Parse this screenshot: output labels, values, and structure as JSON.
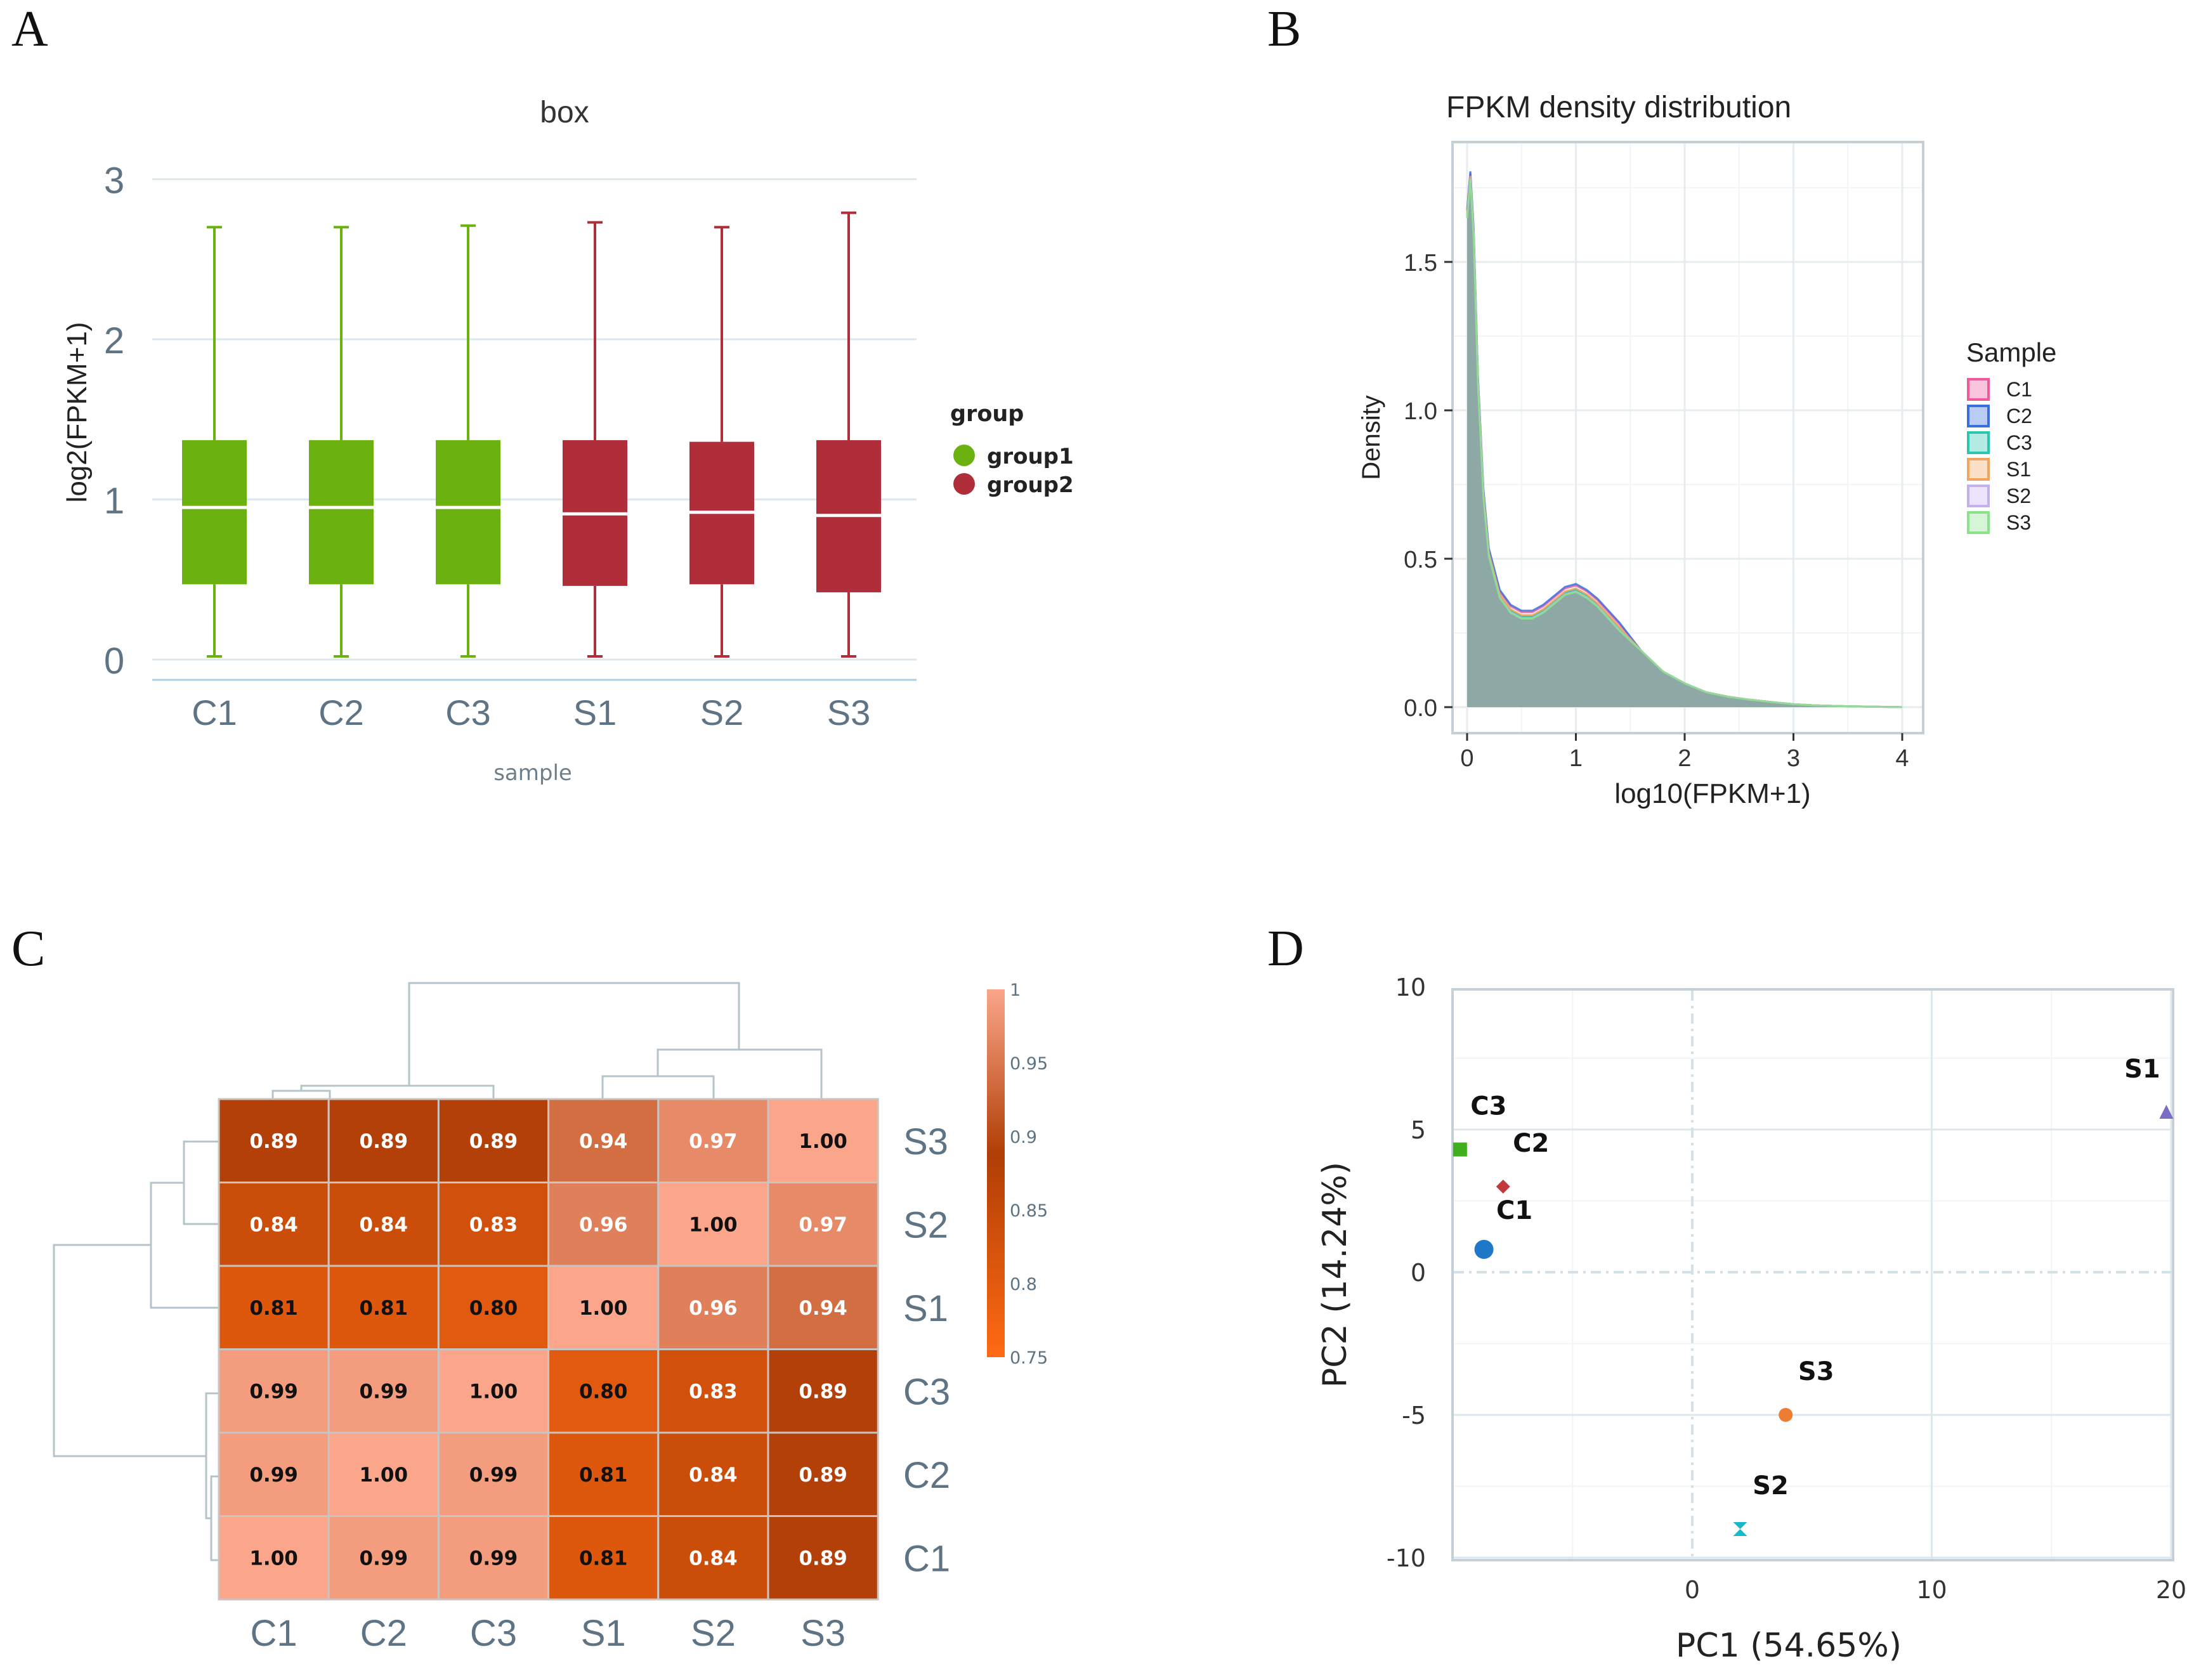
{
  "colors": {
    "group1": "#6bb10f",
    "group2": "#b02e3a",
    "heat_low": "#ff6a14",
    "heat_mid": "#b03e05",
    "heat_high": "#fba58a",
    "grid": "#dde8ee",
    "axis_text": "#5e7383"
  },
  "chart_data": [
    {
      "panel": "A",
      "type": "box",
      "title": "box",
      "xlabel": "sample",
      "ylabel": "log2(FPKM+1)",
      "ylim": [
        0,
        3
      ],
      "yticks": [
        "0",
        "1",
        "2",
        "3"
      ],
      "categories": [
        "C1",
        "C2",
        "C3",
        "S1",
        "S2",
        "S3"
      ],
      "groups": [
        "group1",
        "group1",
        "group1",
        "group2",
        "group2",
        "group2"
      ],
      "boxes": [
        {
          "min": 0.02,
          "q1": 0.47,
          "median": 0.95,
          "q3": 1.37,
          "max": 2.7
        },
        {
          "min": 0.02,
          "q1": 0.47,
          "median": 0.95,
          "q3": 1.37,
          "max": 2.7
        },
        {
          "min": 0.02,
          "q1": 0.47,
          "median": 0.95,
          "q3": 1.37,
          "max": 2.71
        },
        {
          "min": 0.02,
          "q1": 0.46,
          "median": 0.91,
          "q3": 1.37,
          "max": 2.73
        },
        {
          "min": 0.02,
          "q1": 0.47,
          "median": 0.92,
          "q3": 1.36,
          "max": 2.7
        },
        {
          "min": 0.02,
          "q1": 0.42,
          "median": 0.9,
          "q3": 1.37,
          "max": 2.79
        }
      ],
      "legend": {
        "title": "group",
        "entries": [
          "group1",
          "group2"
        ]
      }
    },
    {
      "panel": "B",
      "type": "area",
      "title": "FPKM density distribution",
      "xlabel": "log10(FPKM+1)",
      "ylabel": "Density",
      "xlim": [
        -0.1,
        4.1
      ],
      "ylim": [
        -0.07,
        1.91
      ],
      "xticks": [
        "0",
        "1",
        "2",
        "3",
        "4"
      ],
      "yticks": [
        "0.0",
        "0.5",
        "1.0",
        "1.5"
      ],
      "x": [
        0,
        0.03,
        0.06,
        0.1,
        0.15,
        0.2,
        0.3,
        0.4,
        0.5,
        0.6,
        0.7,
        0.8,
        0.9,
        1.0,
        1.1,
        1.2,
        1.4,
        1.6,
        1.8,
        2.0,
        2.2,
        2.4,
        2.6,
        2.8,
        3.0,
        3.2,
        3.5,
        4.0
      ],
      "density": [
        1.66,
        1.79,
        1.6,
        1.1,
        0.72,
        0.52,
        0.38,
        0.33,
        0.31,
        0.31,
        0.33,
        0.36,
        0.39,
        0.4,
        0.38,
        0.35,
        0.27,
        0.19,
        0.12,
        0.08,
        0.05,
        0.035,
        0.025,
        0.017,
        0.01,
        0.006,
        0.003,
        0.0
      ],
      "legend": {
        "title": "Sample",
        "entries": [
          "C1",
          "C2",
          "C3",
          "S1",
          "S2",
          "S3"
        ]
      },
      "series_colors": [
        "#f05a9a",
        "#3a6ee0",
        "#28c8b0",
        "#f4a35c",
        "#c5b0ee",
        "#8ae28a"
      ]
    },
    {
      "panel": "C",
      "type": "heatmap",
      "rows": [
        "S3",
        "S2",
        "S1",
        "C3",
        "C2",
        "C1"
      ],
      "columns": [
        "C1",
        "C2",
        "C3",
        "S1",
        "S2",
        "S3"
      ],
      "values": [
        [
          0.89,
          0.89,
          0.89,
          0.94,
          0.97,
          1.0
        ],
        [
          0.84,
          0.84,
          0.83,
          0.96,
          1.0,
          0.97
        ],
        [
          0.81,
          0.81,
          0.8,
          1.0,
          0.96,
          0.94
        ],
        [
          0.99,
          0.99,
          1.0,
          0.8,
          0.83,
          0.89
        ],
        [
          0.99,
          1.0,
          0.99,
          0.81,
          0.84,
          0.89
        ],
        [
          1.0,
          0.99,
          0.99,
          0.81,
          0.84,
          0.89
        ]
      ],
      "labels": [
        [
          "0.89",
          "0.89",
          "0.89",
          "0.94",
          "0.97",
          "1.00"
        ],
        [
          "0.84",
          "0.84",
          "0.83",
          "0.96",
          "1.00",
          "0.97"
        ],
        [
          "0.81",
          "0.81",
          "0.80",
          "1.00",
          "0.96",
          "0.94"
        ],
        [
          "0.99",
          "0.99",
          "1.00",
          "0.80",
          "0.83",
          "0.89"
        ],
        [
          "0.99",
          "1.00",
          "0.99",
          "0.81",
          "0.84",
          "0.89"
        ],
        [
          "1.00",
          "0.99",
          "0.99",
          "0.81",
          "0.84",
          "0.89"
        ]
      ],
      "colorbar": {
        "range": [
          0.75,
          1.0
        ],
        "ticks": [
          "1",
          "0.95",
          "0.9",
          "0.85",
          "0.8",
          "0.75"
        ]
      }
    },
    {
      "panel": "D",
      "type": "scatter",
      "xlabel": "PC1 (54.65%)",
      "ylabel": "PC2 (14.24%)",
      "xlim": [
        -10,
        20
      ],
      "ylim": [
        -10,
        10
      ],
      "xticks": [
        "0",
        "10",
        "20"
      ],
      "yticks": [
        "10",
        "5",
        "0",
        "-5",
        "-10"
      ],
      "points": [
        {
          "label": "C1",
          "x": -8.7,
          "y": 0.8,
          "shape": "circle",
          "color": "#1f77c8"
        },
        {
          "label": "C2",
          "x": -7.9,
          "y": 3.0,
          "shape": "diamond",
          "color": "#c0393b"
        },
        {
          "label": "C3",
          "x": -9.7,
          "y": 4.3,
          "shape": "square",
          "color": "#3faf1d"
        },
        {
          "label": "S1",
          "x": 19.8,
          "y": 5.6,
          "shape": "triangle",
          "color": "#7b6cc4"
        },
        {
          "label": "S2",
          "x": 2.0,
          "y": -9.0,
          "shape": "hourglass",
          "color": "#17b8c8"
        },
        {
          "label": "S3",
          "x": 3.9,
          "y": -5.0,
          "shape": "circle",
          "color": "#ed7d31"
        }
      ]
    }
  ],
  "panel_labels": [
    "A",
    "B",
    "C",
    "D"
  ]
}
